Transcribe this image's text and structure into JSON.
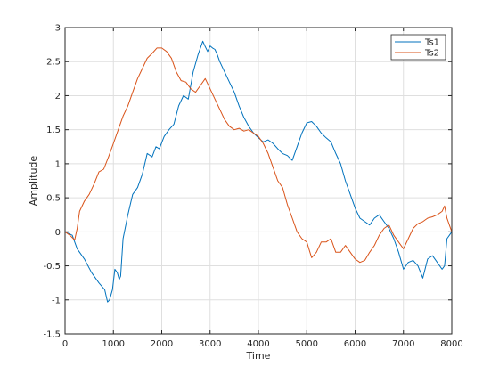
{
  "chart_data": {
    "type": "line",
    "title": "",
    "xlabel": "Time",
    "ylabel": "Amplitude",
    "xlim": [
      0,
      8000
    ],
    "ylim": [
      -1.5,
      3
    ],
    "xticks": [
      0,
      1000,
      2000,
      3000,
      4000,
      5000,
      6000,
      7000,
      8000
    ],
    "yticks": [
      -1.5,
      -1,
      -0.5,
      0,
      0.5,
      1,
      1.5,
      2,
      2.5,
      3
    ],
    "grid": true,
    "legend_position": "top-right",
    "series": [
      {
        "name": "Ts1",
        "color": "#0072BD",
        "x": [
          0,
          150,
          250,
          400,
          550,
          700,
          820,
          880,
          920,
          980,
          1030,
          1080,
          1120,
          1150,
          1200,
          1300,
          1400,
          1500,
          1600,
          1700,
          1800,
          1880,
          1950,
          2050,
          2150,
          2250,
          2350,
          2450,
          2550,
          2650,
          2750,
          2850,
          2900,
          2950,
          3000,
          3050,
          3100,
          3150,
          3200,
          3300,
          3400,
          3500,
          3600,
          3700,
          3800,
          3900,
          4000,
          4100,
          4200,
          4300,
          4400,
          4500,
          4600,
          4700,
          4800,
          4900,
          5000,
          5100,
          5200,
          5300,
          5400,
          5500,
          5600,
          5700,
          5800,
          5900,
          6000,
          6100,
          6200,
          6300,
          6400,
          6500,
          6600,
          6700,
          6800,
          6900,
          7000,
          7100,
          7200,
          7300,
          7400,
          7500,
          7600,
          7700,
          7800,
          7850,
          7900,
          7950,
          8000
        ],
        "y": [
          0.0,
          -0.05,
          -0.25,
          -0.4,
          -0.6,
          -0.75,
          -0.85,
          -1.03,
          -1.0,
          -0.85,
          -0.55,
          -0.6,
          -0.7,
          -0.65,
          -0.1,
          0.25,
          0.55,
          0.65,
          0.85,
          1.15,
          1.1,
          1.25,
          1.22,
          1.4,
          1.5,
          1.58,
          1.85,
          2.0,
          1.95,
          2.35,
          2.6,
          2.8,
          2.72,
          2.65,
          2.73,
          2.7,
          2.68,
          2.6,
          2.5,
          2.35,
          2.2,
          2.05,
          1.85,
          1.68,
          1.55,
          1.45,
          1.38,
          1.32,
          1.35,
          1.3,
          1.22,
          1.15,
          1.12,
          1.05,
          1.25,
          1.45,
          1.6,
          1.62,
          1.55,
          1.45,
          1.38,
          1.32,
          1.15,
          1.0,
          0.75,
          0.55,
          0.35,
          0.2,
          0.15,
          0.1,
          0.2,
          0.25,
          0.15,
          0.05,
          -0.1,
          -0.3,
          -0.55,
          -0.45,
          -0.42,
          -0.5,
          -0.68,
          -0.4,
          -0.35,
          -0.45,
          -0.55,
          -0.5,
          -0.1,
          -0.05,
          0.0
        ]
      },
      {
        "name": "Ts2",
        "color": "#D95319",
        "x": [
          0,
          100,
          200,
          250,
          300,
          400,
          500,
          600,
          700,
          800,
          900,
          1000,
          1100,
          1200,
          1300,
          1400,
          1500,
          1600,
          1700,
          1800,
          1900,
          2000,
          2100,
          2200,
          2300,
          2400,
          2500,
          2600,
          2700,
          2800,
          2900,
          3000,
          3100,
          3200,
          3300,
          3400,
          3500,
          3600,
          3700,
          3800,
          3900,
          4000,
          4100,
          4200,
          4300,
          4400,
          4500,
          4600,
          4700,
          4800,
          4900,
          5000,
          5100,
          5200,
          5300,
          5400,
          5500,
          5600,
          5700,
          5800,
          5900,
          6000,
          6100,
          6200,
          6300,
          6400,
          6500,
          6600,
          6700,
          6800,
          6900,
          7000,
          7100,
          7200,
          7300,
          7400,
          7500,
          7600,
          7700,
          7800,
          7850,
          7900,
          7950,
          8000
        ],
        "y": [
          0.0,
          -0.05,
          -0.12,
          0.05,
          0.3,
          0.45,
          0.55,
          0.7,
          0.88,
          0.92,
          1.1,
          1.3,
          1.5,
          1.7,
          1.85,
          2.05,
          2.25,
          2.4,
          2.55,
          2.62,
          2.7,
          2.7,
          2.65,
          2.55,
          2.35,
          2.22,
          2.2,
          2.1,
          2.05,
          2.15,
          2.25,
          2.1,
          1.95,
          1.8,
          1.65,
          1.55,
          1.5,
          1.52,
          1.48,
          1.5,
          1.45,
          1.4,
          1.3,
          1.15,
          0.95,
          0.75,
          0.65,
          0.4,
          0.2,
          0.0,
          -0.1,
          -0.15,
          -0.38,
          -0.3,
          -0.15,
          -0.15,
          -0.1,
          -0.3,
          -0.3,
          -0.2,
          -0.3,
          -0.4,
          -0.45,
          -0.42,
          -0.3,
          -0.2,
          -0.05,
          0.05,
          0.1,
          -0.05,
          -0.15,
          -0.25,
          -0.1,
          0.05,
          0.12,
          0.15,
          0.2,
          0.22,
          0.25,
          0.3,
          0.38,
          0.2,
          0.1,
          0.0
        ]
      }
    ]
  }
}
